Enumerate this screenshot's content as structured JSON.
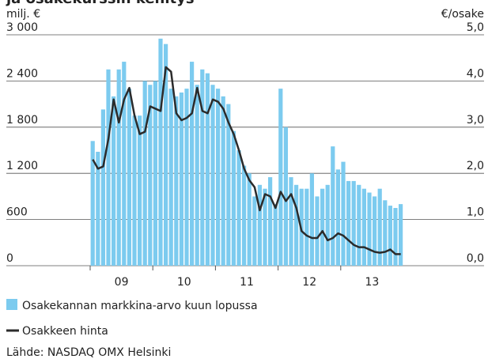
{
  "chart_data": {
    "type": "bar_line",
    "title": "ja osakekurssin kehitys",
    "y_label": "milj. €",
    "y2_label": "€/osake",
    "source": "Lähde: NASDAQ OMX Helsinki",
    "categories": [
      null,
      null,
      null,
      null,
      null,
      null,
      "09",
      null,
      null,
      null,
      null,
      null,
      null,
      null,
      null,
      null,
      null,
      null,
      "10",
      null,
      null,
      null,
      null,
      null,
      null,
      null,
      null,
      null,
      null,
      null,
      "11",
      null,
      null,
      null,
      null,
      null,
      null,
      null,
      null,
      null,
      null,
      null,
      "12",
      null,
      null,
      null,
      null,
      null,
      null,
      null,
      null,
      null,
      null,
      null,
      "13",
      null,
      null,
      null,
      null,
      null
    ],
    "series": [
      {
        "name": "Osakekannan markkina-arvo kuun lopussa",
        "type": "bar",
        "color": "#7ccbef",
        "values": [
          1620,
          1480,
          2030,
          2550,
          2200,
          2550,
          2650,
          2300,
          1950,
          1950,
          2400,
          2350,
          2400,
          2950,
          2880,
          2300,
          2200,
          2250,
          2300,
          2650,
          2350,
          2550,
          2500,
          2350,
          2300,
          2200,
          2100,
          1750,
          1500,
          1300,
          1200,
          900,
          1050,
          1000,
          1150,
          800,
          2300,
          1800,
          1150,
          1050,
          1000,
          1000,
          1200,
          900,
          1000,
          1050,
          1550,
          1250,
          1350,
          1100,
          1100,
          1050,
          1000,
          950,
          900,
          1000,
          850,
          780,
          750,
          800
        ]
      },
      {
        "name": "Osakkeen hinta",
        "type": "line",
        "axis": "y2",
        "color": "#2b2b2b",
        "values": [
          2.3,
          2.1,
          2.15,
          2.75,
          3.6,
          3.1,
          3.6,
          3.85,
          3.25,
          2.85,
          2.9,
          3.45,
          3.4,
          3.35,
          4.3,
          4.2,
          3.3,
          3.15,
          3.2,
          3.3,
          3.85,
          3.35,
          3.3,
          3.6,
          3.55,
          3.4,
          3.1,
          2.85,
          2.5,
          2.1,
          1.85,
          1.7,
          1.2,
          1.55,
          1.5,
          1.25,
          1.6,
          1.4,
          1.55,
          1.25,
          0.75,
          0.65,
          0.6,
          0.6,
          0.75,
          0.55,
          0.6,
          0.7,
          0.65,
          0.55,
          0.45,
          0.4,
          0.4,
          0.35,
          0.3,
          0.28,
          0.3,
          0.35,
          0.25,
          0.25
        ]
      }
    ],
    "ylim": [
      0,
      3000
    ],
    "yticks": [
      0,
      600,
      {
        "value": 1200,
        "label": "1 200"
      },
      {
        "value": 1800,
        "label": "1 800"
      },
      {
        "value": 2400,
        "label": "2 400"
      },
      {
        "value": 3000,
        "label": "3 000"
      }
    ],
    "y2lim": [
      0,
      5
    ],
    "y2ticks": [
      {
        "value": 0,
        "label": "0,0"
      },
      {
        "value": 1,
        "label": "1,0"
      },
      {
        "value": 2,
        "label": "2,0"
      },
      {
        "value": 3,
        "label": "3,0"
      },
      {
        "value": 4,
        "label": "4,0"
      },
      {
        "value": 5,
        "label": "5,0"
      }
    ],
    "grid": true
  }
}
